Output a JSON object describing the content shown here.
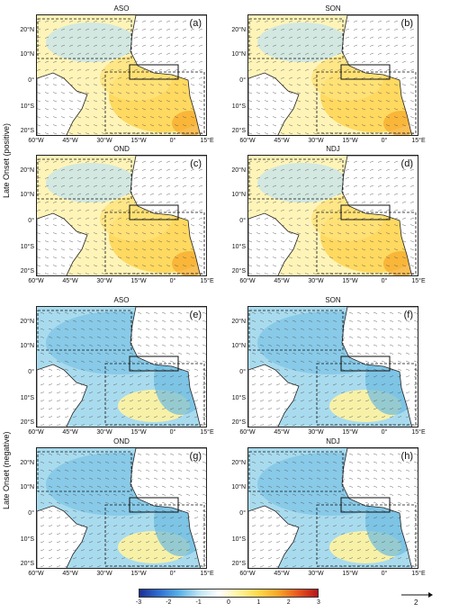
{
  "row_labels": [
    "Late Onset (positive)",
    "Late Onset (negative)"
  ],
  "lat_labels": [
    "20°N",
    "10°N",
    "0°",
    "10°S",
    "20°S"
  ],
  "lon_labels": [
    "60°W",
    "45°W",
    "30°W",
    "15°W",
    "0°",
    "15°E"
  ],
  "panels": [
    {
      "label": "(a)",
      "season": "ASO",
      "sign": "positive"
    },
    {
      "label": "(b)",
      "season": "SON",
      "sign": "positive"
    },
    {
      "label": "(c)",
      "season": "OND",
      "sign": "positive"
    },
    {
      "label": "(d)",
      "season": "NDJ",
      "sign": "positive"
    },
    {
      "label": "(e)",
      "season": "ASO",
      "sign": "negative"
    },
    {
      "label": "(f)",
      "season": "SON",
      "sign": "negative"
    },
    {
      "label": "(g)",
      "season": "OND",
      "sign": "negative"
    },
    {
      "label": "(h)",
      "season": "NDJ",
      "sign": "negative"
    }
  ],
  "colorbar": {
    "ticks": [
      "-3",
      "-2",
      "-1",
      "0",
      "1",
      "2",
      "3"
    ],
    "colors": [
      "#1c2f94",
      "#2f6fd1",
      "#5ab0e6",
      "#bfe3f2",
      "#ffffff",
      "#fff3a0",
      "#ffd84a",
      "#f7a72a",
      "#e8561f",
      "#b5161a"
    ]
  },
  "reference_arrow": {
    "label": "2"
  },
  "colors": {
    "positive": "#ffd84a",
    "negative": "#8ecfe8",
    "land": "#ffffff",
    "box": "#111111"
  }
}
